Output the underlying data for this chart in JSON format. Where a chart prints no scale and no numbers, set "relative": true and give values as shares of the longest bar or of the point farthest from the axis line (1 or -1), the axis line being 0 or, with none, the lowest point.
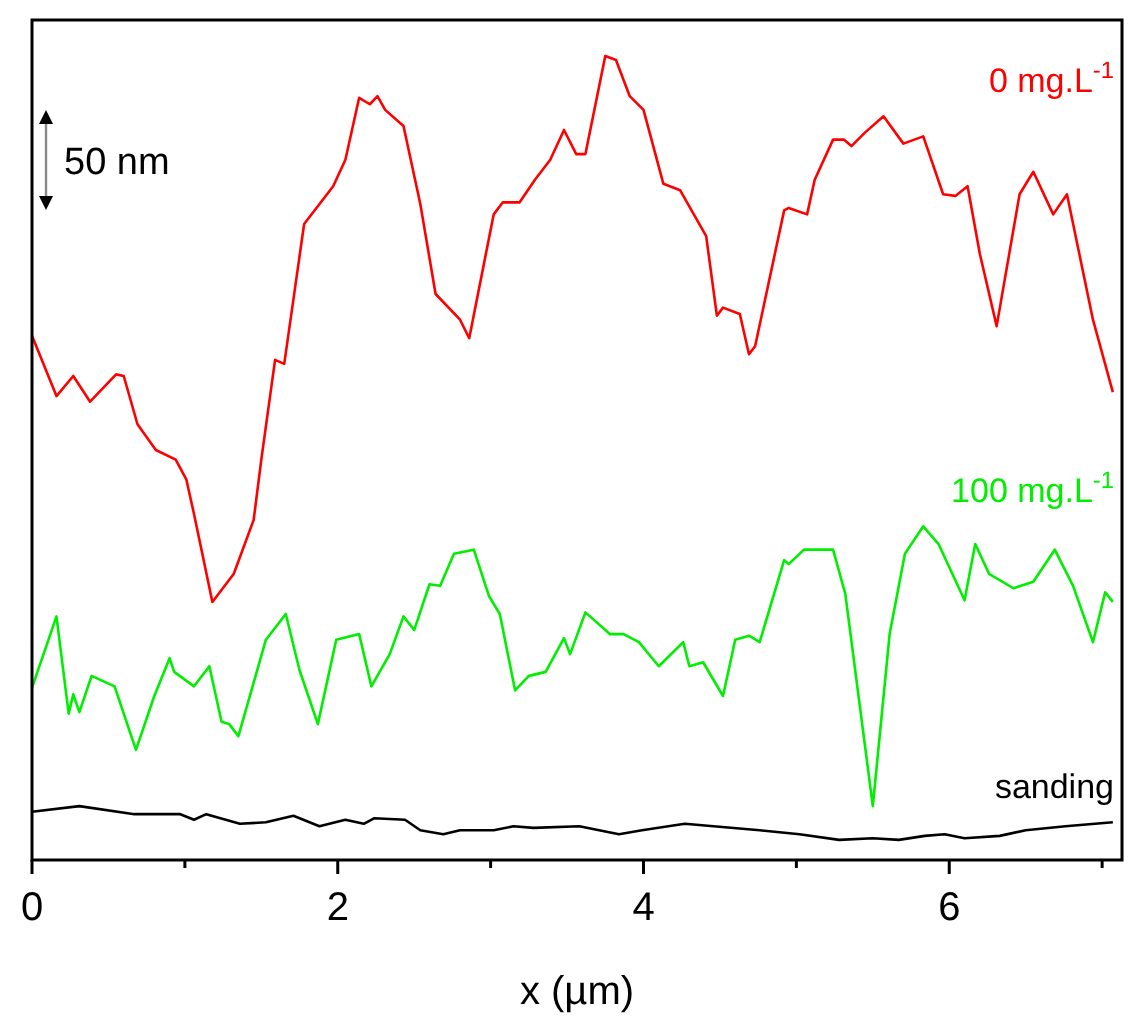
{
  "chart_data": {
    "type": "line",
    "relative": true,
    "xlabel": "x (µm)",
    "xlim": [
      0,
      7.13
    ],
    "xticks": [
      0,
      {
        "value": 1,
        "label": null
      },
      2,
      {
        "value": 3,
        "label": null
      },
      4,
      {
        "value": 5,
        "label": null
      },
      6,
      {
        "value": 7,
        "label": null
      }
    ],
    "grid": false,
    "marker": "none",
    "line_style": "solid",
    "annotations": [
      "50 nm"
    ],
    "series": [
      {
        "name": "0 mg.L$^{-1}$",
        "color": "#ff0000",
        "x": [
          0,
          0.16,
          0.27,
          0.38,
          0.55,
          0.6,
          0.69,
          0.81,
          0.94,
          1.01,
          1.06,
          1.18,
          1.32,
          1.45,
          1.5,
          1.59,
          1.65,
          1.78,
          1.97,
          2.05,
          2.14,
          2.21,
          2.26,
          2.31,
          2.43,
          2.54,
          2.64,
          2.8,
          2.86,
          3.02,
          3.08,
          3.19,
          3.29,
          3.39,
          3.48,
          3.56,
          3.62,
          3.75,
          3.82,
          3.91,
          4,
          4.13,
          4.24,
          4.41,
          4.48,
          4.52,
          4.63,
          4.69,
          4.73,
          4.92,
          4.95,
          5.07,
          5.12,
          5.24,
          5.31,
          5.36,
          5.45,
          5.57,
          5.7,
          5.83,
          5.96,
          6.04,
          6.12,
          6.2,
          6.31,
          6.46,
          6.55,
          6.68,
          6.77,
          6.94,
          7.07
        ],
        "values": [
          0.652,
          0.577,
          0.602,
          0.57,
          0.604,
          0.602,
          0.542,
          0.51,
          0.498,
          0.473,
          0.43,
          0.321,
          0.356,
          0.423,
          0.498,
          0.622,
          0.617,
          0.791,
          0.838,
          0.871,
          0.948,
          0.94,
          0.95,
          0.933,
          0.913,
          0.816,
          0.704,
          0.672,
          0.649,
          0.803,
          0.818,
          0.818,
          0.846,
          0.871,
          0.908,
          0.878,
          0.878,
          1,
          0.995,
          0.95,
          0.933,
          0.841,
          0.833,
          0.776,
          0.677,
          0.687,
          0.679,
          0.629,
          0.639,
          0.808,
          0.811,
          0.803,
          0.846,
          0.896,
          0.896,
          0.888,
          0.905,
          0.925,
          0.891,
          0.9,
          0.828,
          0.826,
          0.838,
          0.754,
          0.664,
          0.828,
          0.856,
          0.803,
          0.828,
          0.672,
          0.582
        ]
      },
      {
        "name": "100 mg.L$^{-1}$",
        "color": "#00ee00",
        "x": [
          0,
          0.16,
          0.24,
          0.27,
          0.31,
          0.39,
          0.54,
          0.68,
          0.8,
          0.9,
          0.93,
          1.06,
          1.16,
          1.24,
          1.29,
          1.35,
          1.53,
          1.66,
          1.75,
          1.87,
          1.99,
          2.14,
          2.22,
          2.34,
          2.43,
          2.5,
          2.6,
          2.67,
          2.76,
          2.89,
          2.99,
          3.06,
          3.16,
          3.25,
          3.36,
          3.48,
          3.52,
          3.62,
          3.78,
          3.87,
          3.97,
          4.1,
          4.26,
          4.3,
          4.39,
          4.52,
          4.6,
          4.69,
          4.76,
          4.92,
          4.95,
          5.05,
          5.24,
          5.32,
          5.5,
          5.61,
          5.71,
          5.83,
          5.93,
          6.1,
          6.17,
          6.26,
          6.42,
          6.55,
          6.69,
          6.81,
          6.94,
          7.02,
          7.07
        ],
        "values": [
          0.214,
          0.303,
          0.182,
          0.206,
          0.184,
          0.229,
          0.216,
          0.137,
          0.204,
          0.251,
          0.234,
          0.216,
          0.241,
          0.172,
          0.169,
          0.154,
          0.274,
          0.306,
          0.236,
          0.169,
          0.274,
          0.281,
          0.216,
          0.256,
          0.303,
          0.286,
          0.343,
          0.341,
          0.381,
          0.386,
          0.328,
          0.306,
          0.211,
          0.229,
          0.234,
          0.276,
          0.256,
          0.308,
          0.281,
          0.281,
          0.271,
          0.241,
          0.271,
          0.241,
          0.246,
          0.204,
          0.274,
          0.279,
          0.271,
          0.373,
          0.368,
          0.386,
          0.386,
          0.331,
          0.067,
          0.281,
          0.381,
          0.415,
          0.393,
          0.323,
          0.393,
          0.356,
          0.338,
          0.346,
          0.386,
          0.341,
          0.271,
          0.333,
          0.321
        ]
      },
      {
        "name": "sanding",
        "color": "#000000",
        "x": [
          0,
          0.31,
          0.67,
          0.97,
          1.06,
          1.14,
          1.36,
          1.53,
          1.71,
          1.88,
          2.05,
          2.17,
          2.24,
          2.44,
          2.54,
          2.69,
          2.8,
          3.02,
          3.15,
          3.28,
          3.58,
          3.84,
          3.99,
          4.27,
          4.76,
          5.02,
          5.28,
          5.5,
          5.67,
          5.84,
          5.97,
          6.1,
          6.33,
          6.5,
          6.76,
          7.07
        ],
        "values": [
          0.06,
          0.067,
          0.057,
          0.057,
          0.05,
          0.057,
          0.045,
          0.047,
          0.055,
          0.042,
          0.05,
          0.045,
          0.052,
          0.05,
          0.037,
          0.032,
          0.037,
          0.037,
          0.042,
          0.04,
          0.042,
          0.032,
          0.037,
          0.045,
          0.037,
          0.032,
          0.025,
          0.027,
          0.025,
          0.03,
          0.032,
          0.027,
          0.03,
          0.037,
          0.042,
          0.047
        ]
      }
    ]
  }
}
